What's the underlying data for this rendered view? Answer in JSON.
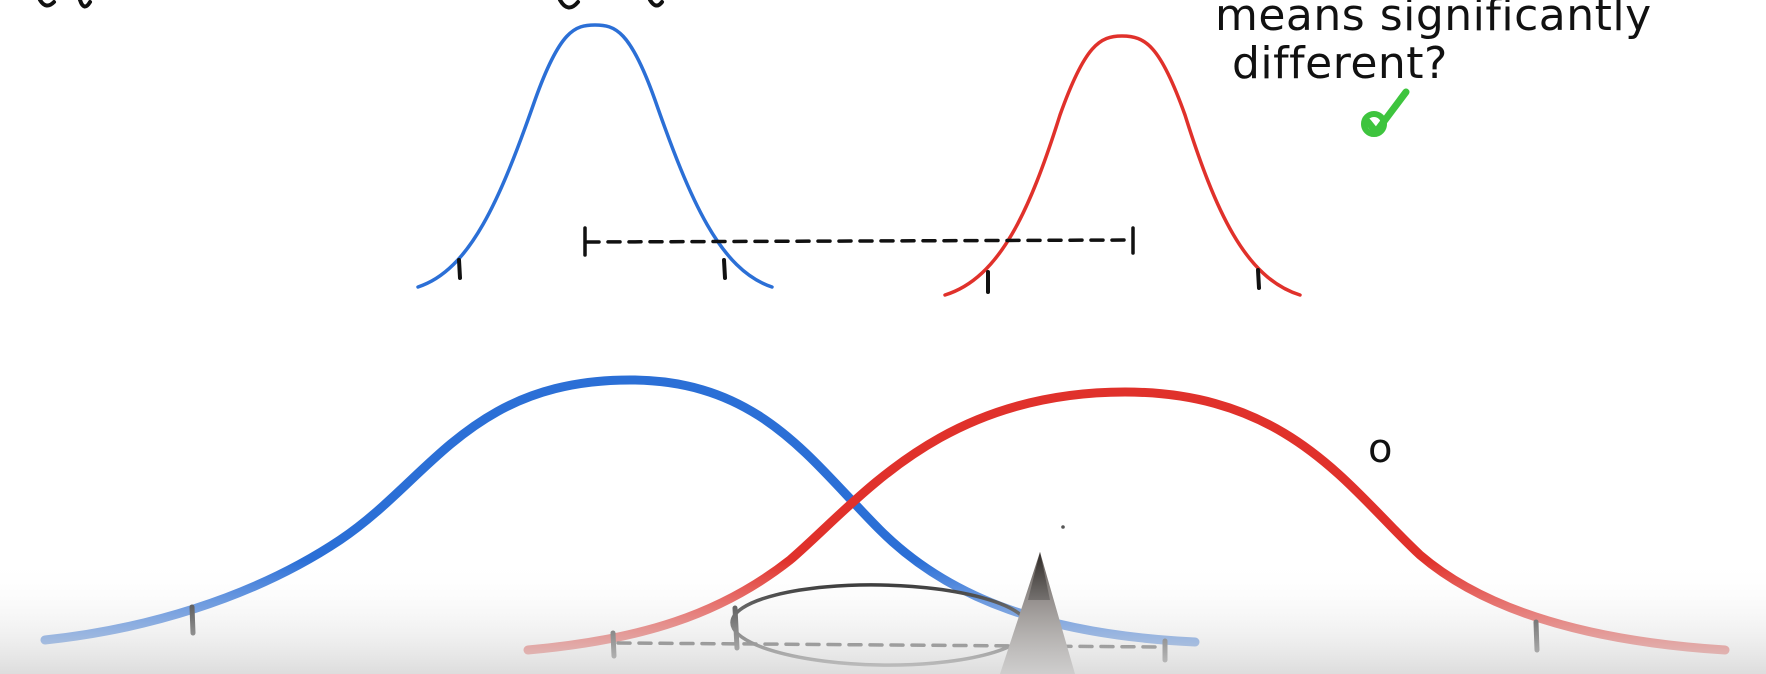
{
  "annotation": {
    "line1": "means significantly",
    "line2": "different?",
    "small_mark": "o"
  },
  "colors": {
    "blue": "#2b6fd6",
    "red": "#e0312b",
    "ink": "#111111",
    "check": "#3ec43e",
    "pen": "#6b6460"
  },
  "icons": {
    "checkmark": "check-icon",
    "pen_tip": "pen-tip-icon"
  }
}
